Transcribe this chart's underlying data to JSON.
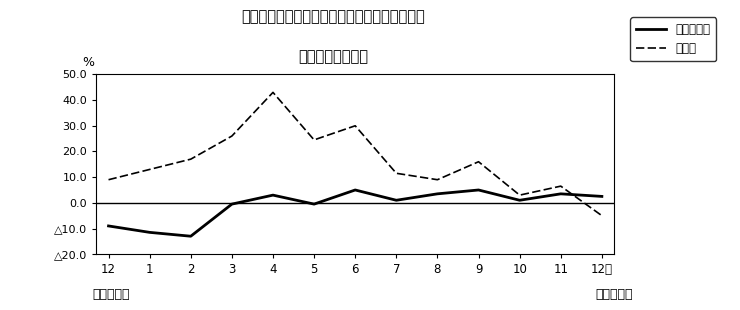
{
  "title_line1": "第２図　所定外労働時間　対前年同月比の推移",
  "title_line2": "（規模５人以上）",
  "xlabel_left": "平成２３年",
  "xlabel_right": "平成２４年",
  "ylabel": "%",
  "x_labels": [
    "12",
    "1",
    "2",
    "3",
    "4",
    "5",
    "6",
    "7",
    "8",
    "9",
    "10",
    "11",
    "12月"
  ],
  "ylim": [
    -20.0,
    50.0
  ],
  "yticks": [
    -20.0,
    -10.0,
    0.0,
    10.0,
    20.0,
    30.0,
    40.0,
    50.0
  ],
  "ytick_labels": [
    "△20.0",
    "△10.0",
    "0.0",
    "10.0",
    "20.0",
    "30.0",
    "40.0",
    "50.0"
  ],
  "series_solid": [
    -9.0,
    -11.5,
    -13.0,
    -0.5,
    3.0,
    -0.5,
    5.0,
    1.0,
    3.5,
    5.0,
    1.0,
    3.5,
    2.5
  ],
  "series_dashed": [
    9.0,
    13.0,
    17.0,
    26.0,
    43.0,
    24.5,
    30.0,
    11.5,
    9.0,
    16.0,
    3.0,
    6.5,
    -5.0
  ],
  "legend_solid": "調査産業計",
  "legend_dashed": "製造業",
  "background_color": "#ffffff",
  "line_color": "#000000",
  "fig_width": 7.4,
  "fig_height": 3.1,
  "dpi": 100
}
